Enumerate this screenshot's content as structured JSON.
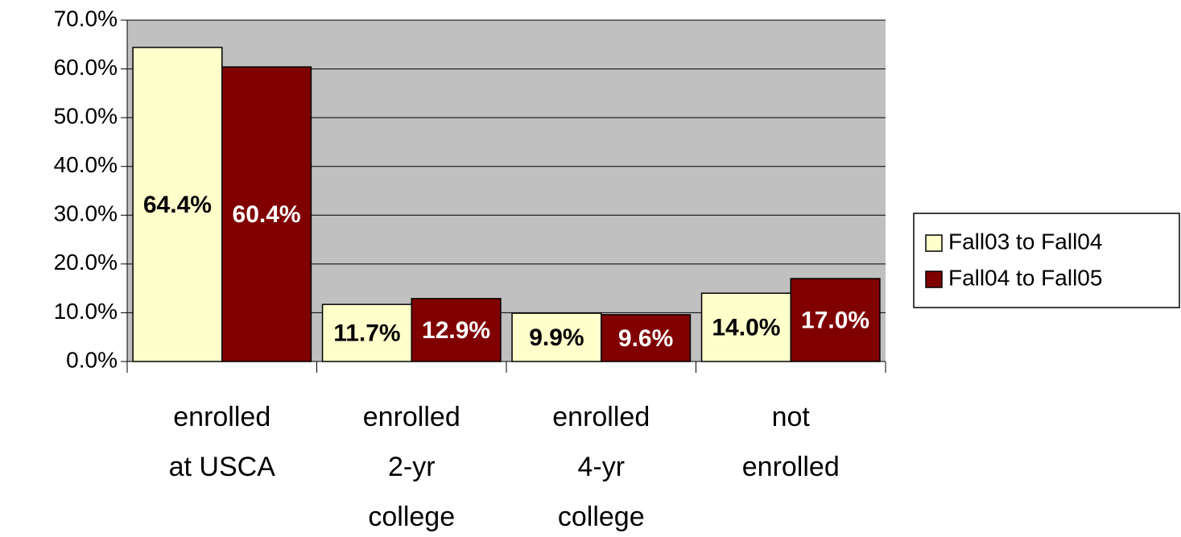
{
  "chart_data": {
    "type": "bar",
    "categories": [
      "enrolled\nat USCA",
      "enrolled\n2-yr\ncollege",
      "enrolled\n4-yr\ncollege",
      "not\nenrolled"
    ],
    "series": [
      {
        "name": "Fall03 to Fall04",
        "color": "#ffffcc",
        "label_color": "#000000",
        "values": [
          64.4,
          11.7,
          9.9,
          14.0
        ],
        "value_labels": [
          "64.4%",
          "11.7%",
          "9.9%",
          "14.0%"
        ]
      },
      {
        "name": "Fall04 to Fall05",
        "color": "#800000",
        "label_color": "#ffffff",
        "values": [
          60.4,
          12.9,
          9.6,
          17.0
        ],
        "value_labels": [
          "60.4%",
          "12.9%",
          "9.6%",
          "17.0%"
        ]
      }
    ],
    "ylim": [
      0,
      70
    ],
    "yticks": [
      {
        "value": 0,
        "label": "0.0%"
      },
      {
        "value": 10,
        "label": "10.0%"
      },
      {
        "value": 20,
        "label": "20.0%"
      },
      {
        "value": 30,
        "label": "30.0%"
      },
      {
        "value": 40,
        "label": "40.0%"
      },
      {
        "value": 50,
        "label": "50.0%"
      },
      {
        "value": 60,
        "label": "60.0%"
      },
      {
        "value": 70,
        "label": "70.0%"
      }
    ],
    "grid": true,
    "legend": "right",
    "plot_background": "#c0c0c0"
  }
}
